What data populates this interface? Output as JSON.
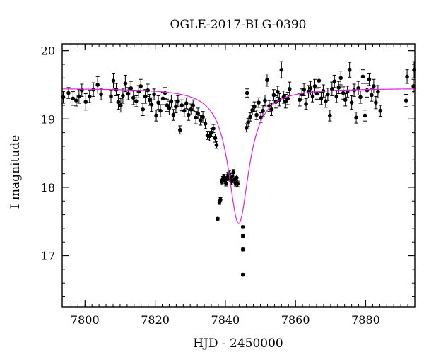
{
  "chart_data": {
    "type": "scatter",
    "title": "OGLE-2017-BLG-0390",
    "xlabel": "HJD - 2450000",
    "ylabel": "I magnitude",
    "xlim": [
      7793.5,
      7894
    ],
    "ylim": [
      20.1,
      16.25
    ],
    "y_inverted": true,
    "grid": false,
    "x_ticks": [
      7800,
      7820,
      7840,
      7860,
      7880
    ],
    "x_tick_labels": [
      "7800",
      "7820",
      "7840",
      "7860",
      "7880"
    ],
    "x_minor_step": 2,
    "y_ticks": [
      17,
      18,
      19,
      20
    ],
    "y_tick_labels": [
      "17",
      "18",
      "19",
      "20"
    ],
    "y_minor_step": 0.2,
    "colors": {
      "points": "#000000",
      "model": "#e020e0",
      "axes": "#000000"
    },
    "model": {
      "name": "",
      "t0": 7843.8,
      "peak_mag": 17.47,
      "baseline_mag": 19.45,
      "width": 3.6,
      "shape": "lorentzian"
    },
    "series": [
      {
        "name": "",
        "points": [
          [
            7793.8,
            19.32,
            0.09
          ],
          [
            7795.3,
            19.38,
            0.08
          ],
          [
            7796.6,
            19.3,
            0.1
          ],
          [
            7797.5,
            19.27,
            0.08
          ],
          [
            7798.3,
            19.33,
            0.1
          ],
          [
            7799.1,
            19.42,
            0.09
          ],
          [
            7800.2,
            19.25,
            0.12
          ],
          [
            7801.3,
            19.33,
            0.09
          ],
          [
            7802.4,
            19.43,
            0.1
          ],
          [
            7803.6,
            19.5,
            0.12
          ],
          [
            7804.6,
            19.36,
            0.08
          ],
          [
            7807.4,
            19.33,
            0.09
          ],
          [
            7808.1,
            19.56,
            0.11
          ],
          [
            7808.9,
            19.43,
            0.09
          ],
          [
            7809.5,
            19.25,
            0.11
          ],
          [
            7810.2,
            19.2,
            0.1
          ],
          [
            7810.8,
            19.34,
            0.11
          ],
          [
            7811.5,
            19.52,
            0.12
          ],
          [
            7812.3,
            19.37,
            0.09
          ],
          [
            7813.1,
            19.45,
            0.1
          ],
          [
            7813.8,
            19.31,
            0.1
          ],
          [
            7814.6,
            19.26,
            0.08
          ],
          [
            7815.3,
            19.4,
            0.09
          ],
          [
            7815.9,
            19.48,
            0.1
          ],
          [
            7816.5,
            19.14,
            0.09
          ],
          [
            7817.2,
            19.33,
            0.1
          ],
          [
            7817.9,
            19.42,
            0.09
          ],
          [
            7818.4,
            19.28,
            0.08
          ],
          [
            7819.0,
            19.21,
            0.1
          ],
          [
            7819.7,
            19.36,
            0.08
          ],
          [
            7820.3,
            19.05,
            0.08
          ],
          [
            7820.9,
            19.24,
            0.1
          ],
          [
            7821.5,
            19.12,
            0.09
          ],
          [
            7822.2,
            19.3,
            0.09
          ],
          [
            7822.8,
            19.38,
            0.08
          ],
          [
            7823.4,
            19.2,
            0.09
          ],
          [
            7824.0,
            19.16,
            0.1
          ],
          [
            7824.6,
            19.26,
            0.09
          ],
          [
            7825.2,
            19.06,
            0.08
          ],
          [
            7825.9,
            19.18,
            0.09
          ],
          [
            7826.5,
            19.26,
            0.08
          ],
          [
            7827.1,
            18.84,
            0.06
          ],
          [
            7827.6,
            19.2,
            0.08
          ],
          [
            7828.3,
            19.12,
            0.09
          ],
          [
            7828.9,
            19.23,
            0.08
          ],
          [
            7829.5,
            19.06,
            0.08
          ],
          [
            7830.2,
            19.14,
            0.08
          ],
          [
            7830.8,
            19.2,
            0.08
          ],
          [
            7831.6,
            19.02,
            0.09
          ],
          [
            7832.2,
            19.08,
            0.08
          ],
          [
            7832.9,
            18.98,
            0.07
          ],
          [
            7833.6,
            19.03,
            0.08
          ],
          [
            7834.3,
            18.93,
            0.07
          ],
          [
            7834.9,
            18.76,
            0.06
          ],
          [
            7835.5,
            18.75,
            0.07
          ],
          [
            7836.1,
            18.8,
            0.06
          ],
          [
            7836.6,
            18.86,
            0.06
          ],
          [
            7837.1,
            18.72,
            0.06
          ],
          [
            7837.5,
            18.62,
            0.05
          ],
          [
            7837.8,
            17.54,
            0.02
          ],
          [
            7838.3,
            17.78,
            0.03
          ],
          [
            7838.6,
            17.82,
            0.03
          ],
          [
            7839.0,
            18.08,
            0.04
          ],
          [
            7839.3,
            18.12,
            0.04
          ],
          [
            7839.6,
            18.15,
            0.04
          ],
          [
            7839.9,
            18.1,
            0.04
          ],
          [
            7840.2,
            18.06,
            0.04
          ],
          [
            7840.5,
            18.14,
            0.04
          ],
          [
            7840.8,
            18.18,
            0.04
          ],
          [
            7841.1,
            18.2,
            0.04
          ],
          [
            7841.4,
            18.12,
            0.04
          ],
          [
            7841.7,
            18.08,
            0.04
          ],
          [
            7842.0,
            18.16,
            0.04
          ],
          [
            7842.3,
            18.22,
            0.04
          ],
          [
            7842.6,
            18.11,
            0.04
          ],
          [
            7842.9,
            18.06,
            0.04
          ],
          [
            7843.2,
            18.14,
            0.04
          ],
          [
            7843.5,
            18.05,
            0.04
          ],
          [
            7845.0,
            16.72,
            0.02
          ],
          [
            7845.0,
            17.09,
            0.02
          ],
          [
            7845.0,
            17.29,
            0.02
          ],
          [
            7845.0,
            17.42,
            0.02
          ],
          [
            7846.0,
            18.87,
            0.06
          ],
          [
            7846.2,
            19.38,
            0.06
          ],
          [
            7846.5,
            18.95,
            0.06
          ],
          [
            7847.1,
            19.03,
            0.06
          ],
          [
            7847.7,
            19.13,
            0.07
          ],
          [
            7848.3,
            19.18,
            0.07
          ],
          [
            7848.9,
            19.06,
            0.07
          ],
          [
            7849.5,
            19.24,
            0.07
          ],
          [
            7850.1,
            19.02,
            0.07
          ],
          [
            7850.7,
            19.12,
            0.08
          ],
          [
            7851.3,
            19.27,
            0.08
          ],
          [
            7851.9,
            19.57,
            0.09
          ],
          [
            7852.5,
            19.19,
            0.08
          ],
          [
            7853.2,
            19.14,
            0.09
          ],
          [
            7853.8,
            19.35,
            0.08
          ],
          [
            7854.4,
            19.25,
            0.09
          ],
          [
            7854.9,
            19.4,
            0.08
          ],
          [
            7855.4,
            19.28,
            0.09
          ],
          [
            7856.0,
            19.72,
            0.12
          ],
          [
            7856.6,
            19.32,
            0.09
          ],
          [
            7857.2,
            19.26,
            0.1
          ],
          [
            7857.8,
            19.3,
            0.09
          ],
          [
            7858.3,
            19.44,
            0.1
          ],
          [
            7861.2,
            19.28,
            0.09
          ],
          [
            7861.8,
            19.36,
            0.08
          ],
          [
            7862.4,
            19.43,
            0.09
          ],
          [
            7863.0,
            19.22,
            0.08
          ],
          [
            7863.7,
            19.4,
            0.09
          ],
          [
            7864.3,
            19.45,
            0.1
          ],
          [
            7864.9,
            19.33,
            0.08
          ],
          [
            7865.5,
            19.48,
            0.1
          ],
          [
            7866.1,
            19.37,
            0.08
          ],
          [
            7866.7,
            19.56,
            0.1
          ],
          [
            7867.3,
            19.3,
            0.09
          ],
          [
            7867.9,
            19.41,
            0.09
          ],
          [
            7868.6,
            19.26,
            0.09
          ],
          [
            7869.2,
            19.36,
            0.09
          ],
          [
            7869.8,
            19.05,
            0.08
          ],
          [
            7870.4,
            19.44,
            0.1
          ],
          [
            7871.1,
            19.55,
            0.09
          ],
          [
            7871.7,
            19.33,
            0.09
          ],
          [
            7872.3,
            19.46,
            0.09
          ],
          [
            7872.9,
            19.6,
            0.1
          ],
          [
            7873.6,
            19.38,
            0.09
          ],
          [
            7874.2,
            19.28,
            0.09
          ],
          [
            7874.8,
            19.4,
            0.08
          ],
          [
            7875.4,
            19.72,
            0.11
          ],
          [
            7876.0,
            19.24,
            0.1
          ],
          [
            7876.7,
            19.42,
            0.09
          ],
          [
            7877.3,
            19.02,
            0.08
          ],
          [
            7877.9,
            19.45,
            0.1
          ],
          [
            7878.5,
            19.32,
            0.09
          ],
          [
            7879.2,
            19.62,
            0.1
          ],
          [
            7879.8,
            19.05,
            0.08
          ],
          [
            7880.4,
            19.42,
            0.1
          ],
          [
            7881.0,
            19.58,
            0.09
          ],
          [
            7881.7,
            19.35,
            0.09
          ],
          [
            7882.3,
            19.48,
            0.1
          ],
          [
            7882.9,
            19.24,
            0.09
          ],
          [
            7883.5,
            19.4,
            0.09
          ],
          [
            7884.2,
            19.12,
            0.08
          ],
          [
            7891.5,
            19.27,
            0.09
          ],
          [
            7891.8,
            19.62,
            0.1
          ],
          [
            7893.6,
            19.48,
            0.1
          ],
          [
            7893.8,
            19.72,
            0.12
          ]
        ]
      }
    ]
  }
}
